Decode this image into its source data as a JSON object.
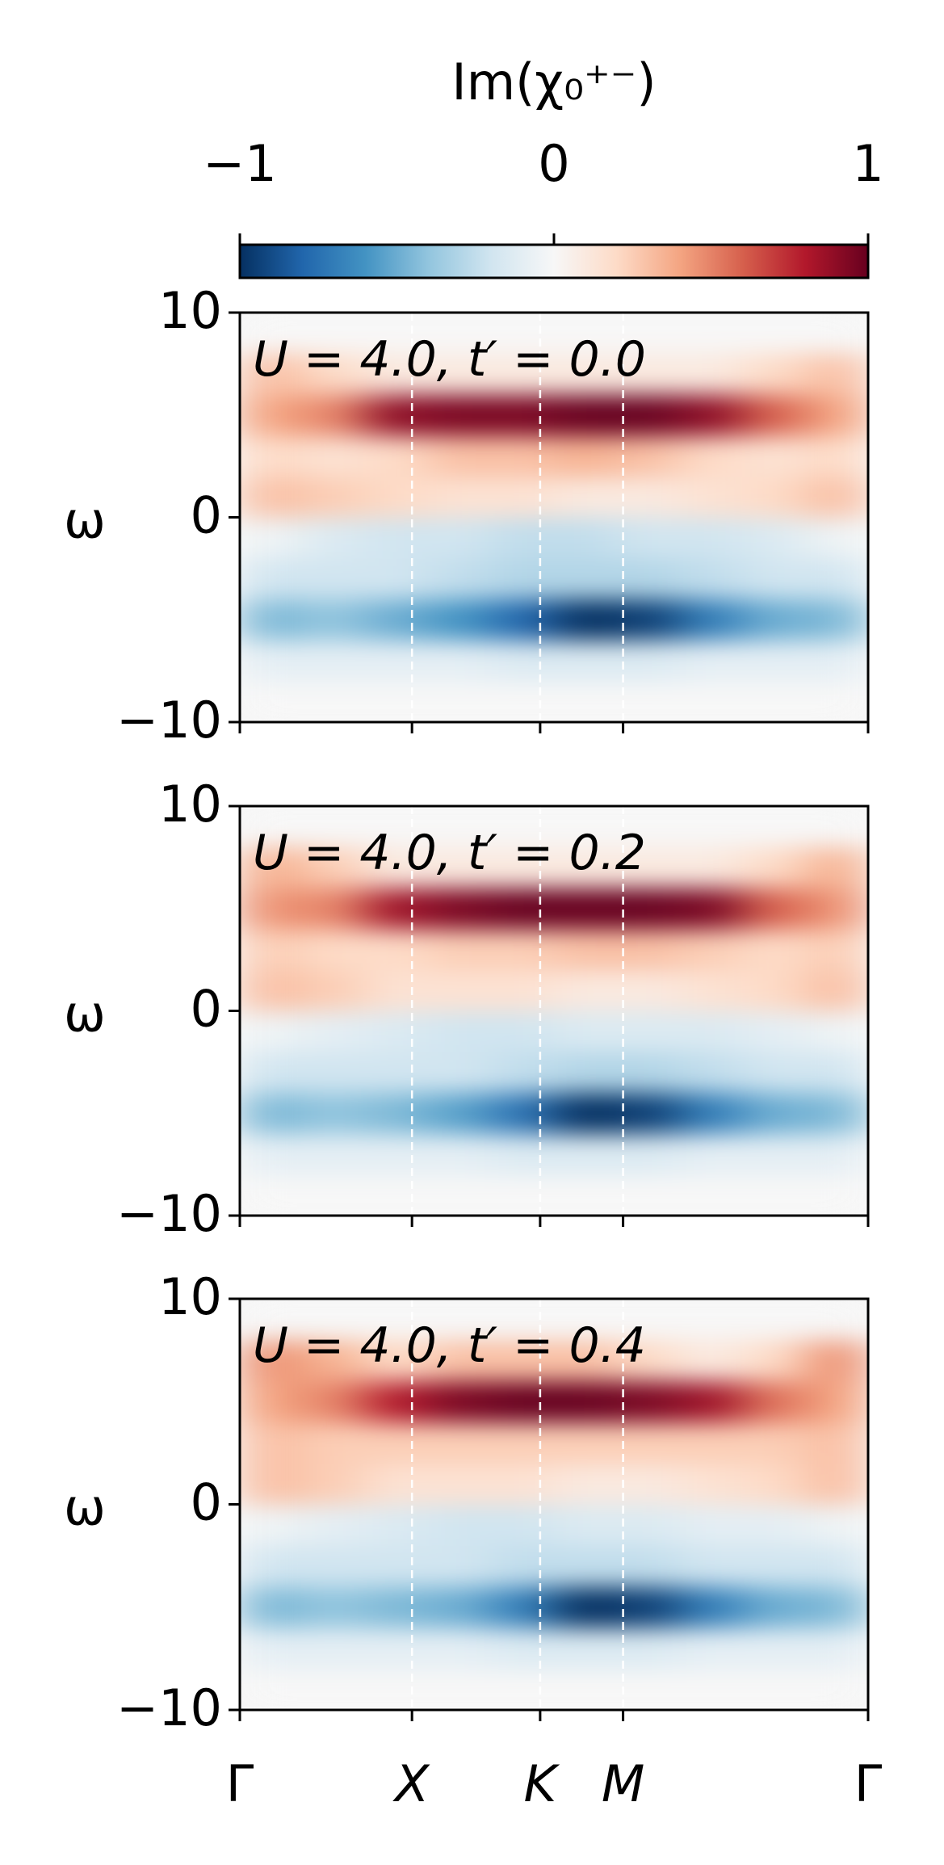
{
  "colorbar": {
    "label": "Im(χ₀⁺⁻)",
    "clim": [
      -1,
      1
    ],
    "ticks": [
      {
        "value": -1,
        "label": "−1"
      },
      0,
      1
    ],
    "colormap": [
      "#053061",
      "#2166ac",
      "#4393c3",
      "#92c5de",
      "#d1e5f0",
      "#f7f7f7",
      "#fddbc7",
      "#f4a582",
      "#d6604d",
      "#b2182b",
      "#67001f"
    ]
  },
  "chart_data": [
    {
      "type": "heatmap",
      "annotation": "U = 4.0, t′ = 0.0",
      "ylabel": "ω",
      "xlim": [
        0,
        1
      ],
      "ylim": [
        -10,
        10
      ],
      "xticks": [
        0,
        0.274,
        0.478,
        0.61,
        1
      ],
      "yticks": [
        {
          "value": -10,
          "label": "−10"
        },
        0,
        10
      ],
      "x": [
        0.05,
        0.15,
        0.25,
        0.35,
        0.45,
        0.55,
        0.65,
        0.75,
        0.85,
        0.95
      ],
      "y": [
        -9,
        -7,
        -5,
        -3,
        -1,
        1,
        3,
        5,
        7,
        9
      ],
      "z": [
        [
          0,
          0,
          0,
          0,
          0,
          0,
          0,
          0,
          0,
          0
        ],
        [
          -0.1,
          -0.1,
          -0.1,
          -0.1,
          -0.15,
          -0.15,
          -0.15,
          -0.1,
          -0.1,
          -0.1
        ],
        [
          -0.45,
          -0.4,
          -0.5,
          -0.6,
          -0.8,
          -1,
          -0.95,
          -0.7,
          -0.5,
          -0.45
        ],
        [
          -0.2,
          -0.2,
          -0.2,
          -0.25,
          -0.3,
          -0.3,
          -0.3,
          -0.25,
          -0.2,
          -0.2
        ],
        [
          -0.05,
          -0.15,
          -0.2,
          -0.2,
          -0.25,
          -0.25,
          -0.2,
          -0.2,
          -0.15,
          -0.05
        ],
        [
          0.3,
          0.25,
          0.2,
          0.15,
          0.15,
          0.1,
          0.1,
          0.15,
          0.2,
          0.3
        ],
        [
          0.2,
          0.15,
          0.2,
          0.3,
          0.3,
          0.35,
          0.3,
          0.2,
          0.15,
          0.2
        ],
        [
          0.4,
          0.5,
          0.9,
          0.95,
          0.95,
          1,
          1,
          0.9,
          0.6,
          0.4
        ],
        [
          0.3,
          0.2,
          0.1,
          0.1,
          0.1,
          0.1,
          0.1,
          0.1,
          0.2,
          0.3
        ],
        [
          0,
          0,
          0,
          0,
          0,
          0,
          0,
          0,
          0,
          0
        ]
      ]
    },
    {
      "type": "heatmap",
      "annotation": "U = 4.0, t′ = 0.2",
      "ylabel": "ω",
      "xlim": [
        0,
        1
      ],
      "ylim": [
        -10,
        10
      ],
      "xticks": [
        0,
        0.274,
        0.478,
        0.61,
        1
      ],
      "yticks": [
        {
          "value": -10,
          "label": "−10"
        },
        0,
        10
      ],
      "x": [
        0.05,
        0.15,
        0.25,
        0.35,
        0.45,
        0.55,
        0.65,
        0.75,
        0.85,
        0.95
      ],
      "y": [
        -9,
        -7,
        -5,
        -3,
        -1,
        1,
        3,
        5,
        7,
        9
      ],
      "z": [
        [
          0,
          0,
          0,
          0,
          0,
          0,
          0,
          0,
          0,
          0
        ],
        [
          -0.1,
          -0.1,
          -0.1,
          -0.1,
          -0.15,
          -0.15,
          -0.15,
          -0.1,
          -0.1,
          -0.1
        ],
        [
          -0.45,
          -0.4,
          -0.45,
          -0.55,
          -0.75,
          -1,
          -0.95,
          -0.7,
          -0.5,
          -0.45
        ],
        [
          -0.2,
          -0.2,
          -0.2,
          -0.2,
          -0.25,
          -0.3,
          -0.3,
          -0.25,
          -0.2,
          -0.2
        ],
        [
          -0.05,
          -0.1,
          -0.15,
          -0.2,
          -0.2,
          -0.15,
          -0.15,
          -0.15,
          -0.1,
          -0.05
        ],
        [
          0.3,
          0.25,
          0.15,
          0.15,
          0.15,
          0.1,
          0.1,
          0.15,
          0.2,
          0.3
        ],
        [
          0.25,
          0.2,
          0.2,
          0.25,
          0.25,
          0.3,
          0.3,
          0.25,
          0.2,
          0.25
        ],
        [
          0.45,
          0.5,
          0.85,
          0.95,
          1,
          1,
          1,
          0.95,
          0.6,
          0.45
        ],
        [
          0.35,
          0.25,
          0.1,
          0.1,
          0.1,
          0.1,
          0.1,
          0.1,
          0.2,
          0.35
        ],
        [
          0,
          0,
          0,
          0,
          0,
          0,
          0,
          0,
          0,
          0
        ]
      ]
    },
    {
      "type": "heatmap",
      "annotation": "U = 4.0, t′ = 0.4",
      "ylabel": "ω",
      "xlim": [
        0,
        1
      ],
      "ylim": [
        -10,
        10
      ],
      "xticks": [
        {
          "value": 0,
          "label": "Γ"
        },
        {
          "value": 0.274,
          "label": "X"
        },
        {
          "value": 0.478,
          "label": "K"
        },
        {
          "value": 0.61,
          "label": "M"
        },
        {
          "value": 1,
          "label": "Γ"
        }
      ],
      "yticks": [
        {
          "value": -10,
          "label": "−10"
        },
        0,
        10
      ],
      "x": [
        0.05,
        0.15,
        0.25,
        0.35,
        0.45,
        0.55,
        0.65,
        0.75,
        0.85,
        0.95
      ],
      "y": [
        -9,
        -7,
        -5,
        -3,
        -1,
        1,
        3,
        5,
        7,
        9
      ],
      "z": [
        [
          0,
          0,
          0,
          0,
          0,
          0,
          0,
          0,
          0,
          0
        ],
        [
          -0.1,
          -0.1,
          -0.1,
          -0.1,
          -0.15,
          -0.15,
          -0.15,
          -0.1,
          -0.1,
          -0.1
        ],
        [
          -0.45,
          -0.4,
          -0.45,
          -0.5,
          -0.7,
          -1,
          -0.95,
          -0.7,
          -0.5,
          -0.45
        ],
        [
          -0.2,
          -0.2,
          -0.2,
          -0.2,
          -0.25,
          -0.25,
          -0.25,
          -0.2,
          -0.2,
          -0.2
        ],
        [
          -0.05,
          -0.1,
          -0.15,
          -0.2,
          -0.2,
          -0.15,
          -0.15,
          -0.1,
          -0.1,
          -0.05
        ],
        [
          0.3,
          0.25,
          0.15,
          0.15,
          0.15,
          0.1,
          0.1,
          0.15,
          0.2,
          0.3
        ],
        [
          0.3,
          0.25,
          0.25,
          0.25,
          0.25,
          0.25,
          0.25,
          0.25,
          0.25,
          0.3
        ],
        [
          0.4,
          0.5,
          0.8,
          0.95,
          1,
          1,
          0.95,
          0.85,
          0.55,
          0.4
        ],
        [
          0.45,
          0.35,
          0.2,
          0.3,
          0.3,
          0.3,
          0.2,
          0.1,
          0.2,
          0.45
        ],
        [
          0,
          0,
          0,
          0,
          0,
          0,
          0,
          0,
          0,
          0
        ]
      ]
    }
  ]
}
